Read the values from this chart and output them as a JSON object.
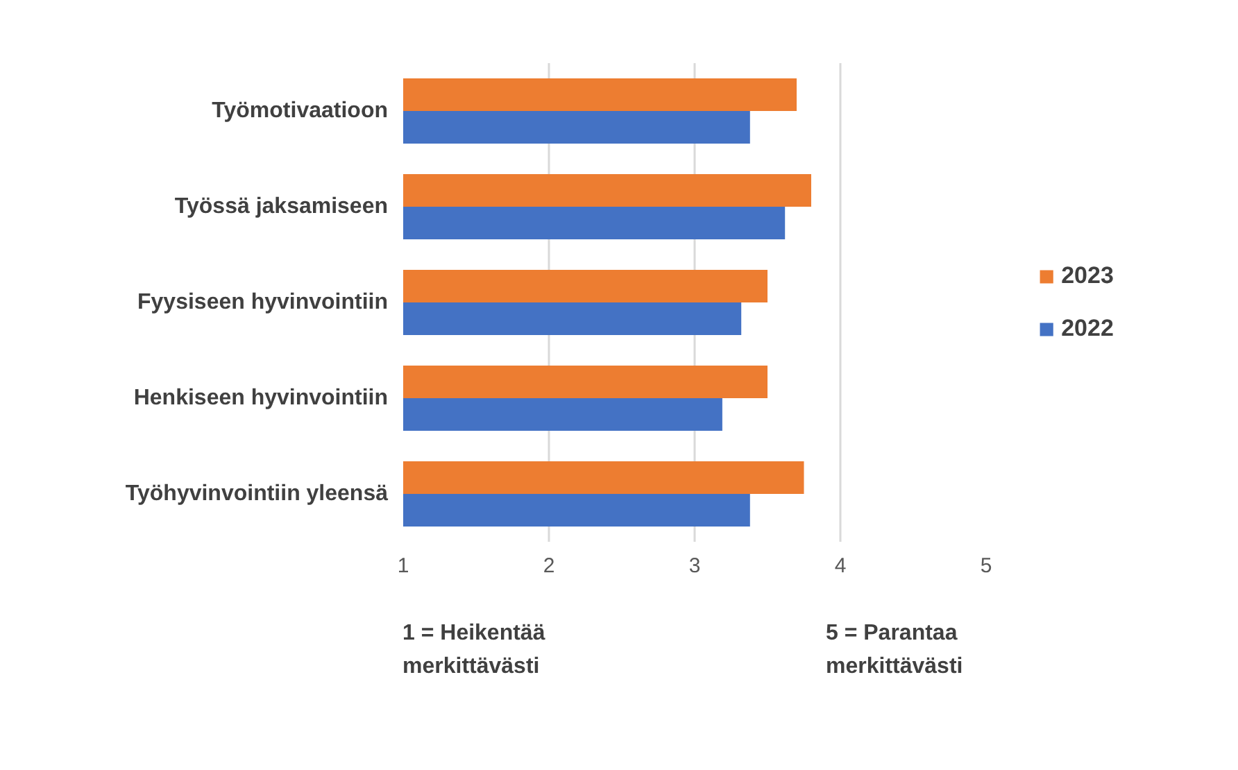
{
  "chart_data": {
    "type": "bar",
    "orientation": "horizontal",
    "categories": [
      "Työmotivaatioon",
      "Työssä jaksamiseen",
      "Fyysiseen hyvinvointiin",
      "Henkiseen hyvinvointiin",
      "Työhyvinvointiin yleensä"
    ],
    "series": [
      {
        "name": "2023",
        "color": "#ed7d31",
        "values": [
          3.7,
          3.8,
          3.5,
          3.5,
          3.75
        ]
      },
      {
        "name": "2022",
        "color": "#4472c4",
        "values": [
          3.38,
          3.62,
          3.32,
          3.19,
          3.38
        ]
      }
    ],
    "xlim": [
      1,
      5
    ],
    "xticks": [
      1,
      2,
      3,
      4,
      5
    ],
    "grid": "x",
    "legend": "right",
    "annotations": [
      "1 = Heikentää\nmerkittävästi",
      "5 = Parantaa\nmerkittävästi"
    ]
  }
}
